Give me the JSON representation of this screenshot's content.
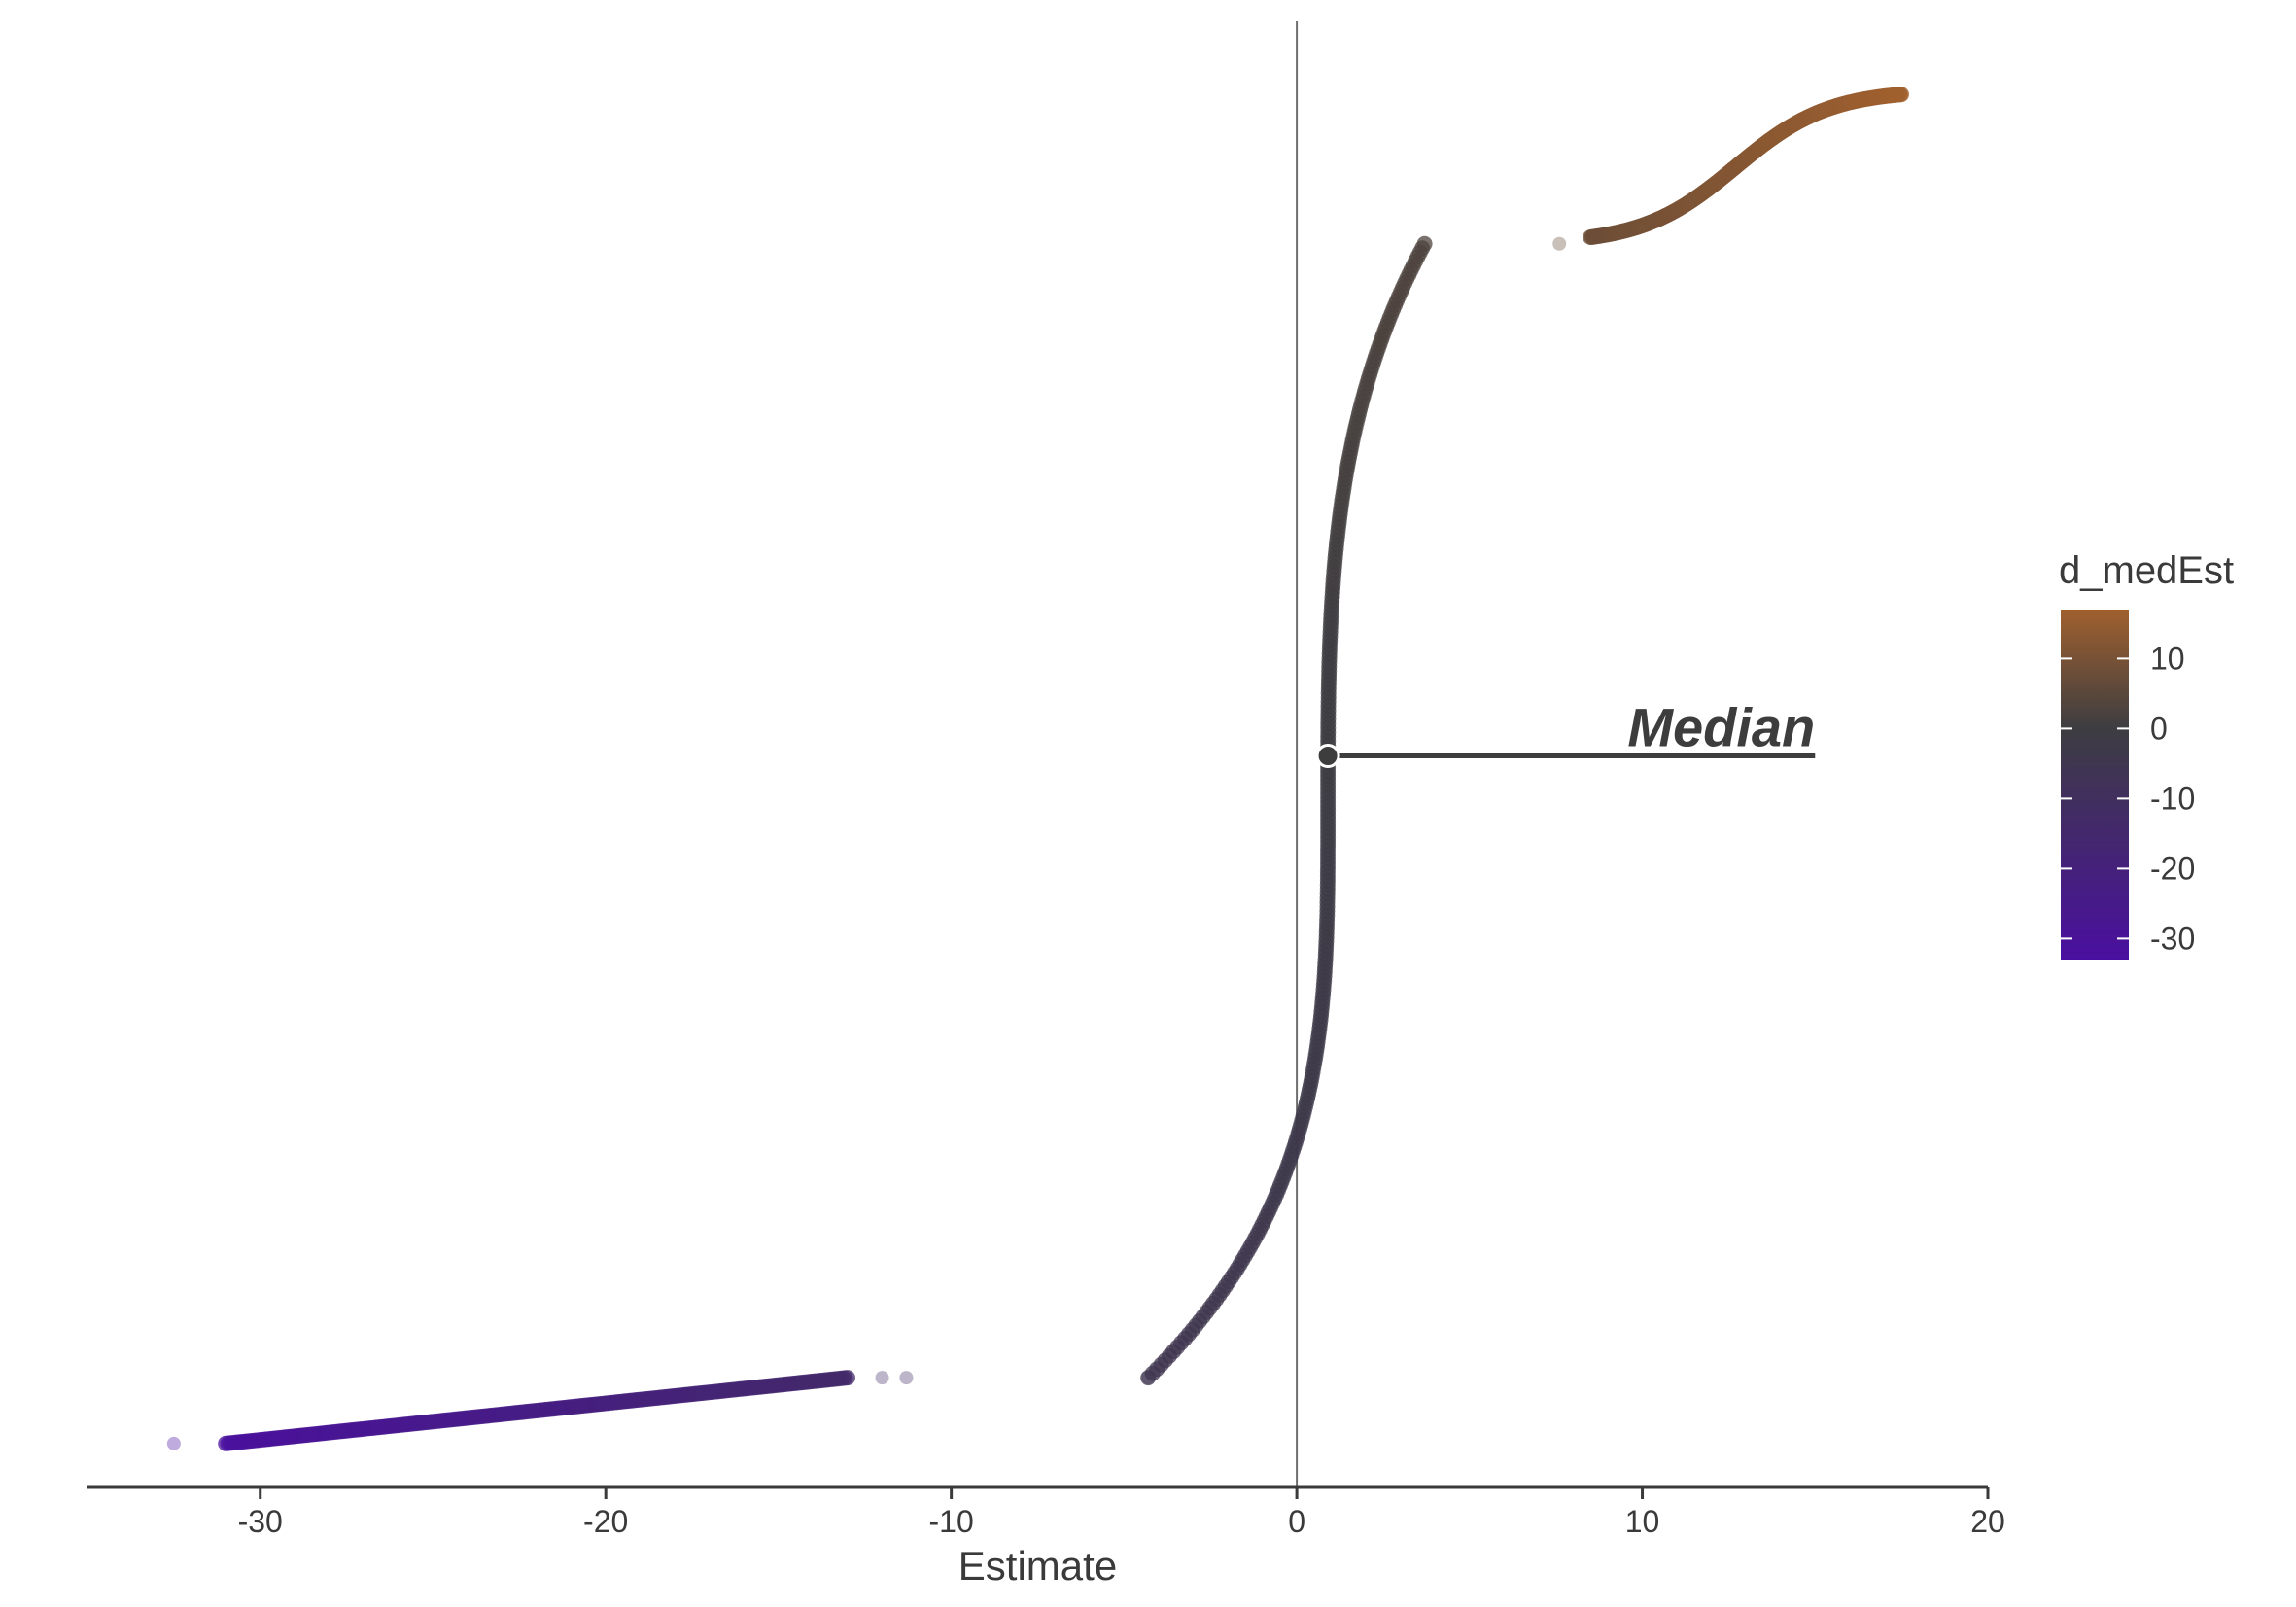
{
  "chart_data": {
    "type": "scatter",
    "title": "",
    "xlabel": "Estimate",
    "ylabel": "",
    "xlim": [
      -35,
      20
    ],
    "ylim": [
      0,
      1
    ],
    "x_ticks": [
      -30,
      -20,
      -10,
      0,
      10,
      20
    ],
    "x_tick_labels": [
      "-30",
      "-20",
      "-10",
      "0",
      "10",
      "20"
    ],
    "grid": false,
    "reference_line_x": 0,
    "median": {
      "x": 0.9,
      "y": 0.5,
      "label": "Median"
    },
    "series": [
      {
        "x_range": [
          -31,
          -13
        ],
        "y_range": [
          0.03,
          0.075
        ],
        "color_value_range": [
          -32,
          -14
        ],
        "shape": "linear"
      },
      {
        "x_range": [
          -4.3,
          3.7
        ],
        "y_range": [
          0.075,
          0.85
        ],
        "color_value_range": [
          -5,
          3
        ],
        "shape": "sigmoid"
      },
      {
        "x_range": [
          8.5,
          17.5
        ],
        "y_range": [
          0.85,
          0.955
        ],
        "color_value_range": [
          8,
          17
        ],
        "shape": "sigmoid"
      }
    ],
    "outlier_points": [
      {
        "x": -32.5,
        "y": 0.03,
        "color_value": -33
      },
      {
        "x": -11.3,
        "y": 0.075,
        "color_value": -12
      },
      {
        "x": -12.0,
        "y": 0.075,
        "color_value": -12
      },
      {
        "x": -4.3,
        "y": 0.075,
        "color_value": -5
      },
      {
        "x": 7.6,
        "y": 0.85,
        "color_value": 7
      }
    ],
    "legend": {
      "title": "d_medEst",
      "position": "right",
      "range": [
        -33,
        17
      ],
      "ticks": [
        10,
        0,
        -10,
        -20,
        -30
      ],
      "tick_labels": [
        "10",
        "0",
        "-10",
        "-20",
        "-30"
      ],
      "colors": {
        "low": "#4a0fa0",
        "mid": "#3d3d41",
        "high": "#a0602e"
      }
    }
  }
}
